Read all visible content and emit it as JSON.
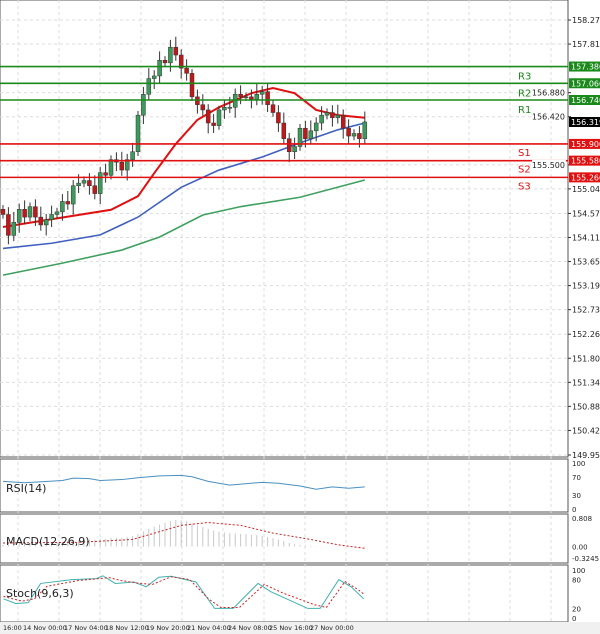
{
  "colors": {
    "resistance": "#1a8a1a",
    "support": "#e01010",
    "ma_fast": "#e01010",
    "ma_mid": "#4060c0",
    "ma_slow": "#40a060",
    "bull": "#3c9a5a",
    "bear": "#c01818",
    "rsi": "#4a90c0",
    "stoch_main": "#40b0b0",
    "stoch_signal": "#d02020",
    "macd_hist": "#c8c8c8",
    "macd_signal": "#d02020",
    "current_price_bg": "#000000"
  },
  "price_axis": {
    "ticks": [
      "158.270",
      "157.810",
      "156.880",
      "156.420",
      "155.500",
      "155.040",
      "154.570",
      "154.110",
      "153.650",
      "153.190",
      "152.730",
      "152.260",
      "151.800",
      "151.340",
      "150.880",
      "150.420",
      "149.950"
    ],
    "range": [
      149.95,
      158.27
    ]
  },
  "current_price": {
    "value": 156.319,
    "label": "156.319"
  },
  "levels": [
    {
      "name": "R3",
      "value": 157.38,
      "label": "157.380",
      "type": "resistance"
    },
    {
      "name": "R2",
      "value": 157.06,
      "label": "157.060",
      "type": "resistance"
    },
    {
      "name": "R1",
      "value": 156.74,
      "label": "156.740",
      "type": "resistance"
    },
    {
      "name": "S1",
      "value": 155.9,
      "label": "155.900",
      "type": "support"
    },
    {
      "name": "S2",
      "value": 155.58,
      "label": "155.580",
      "type": "support"
    },
    {
      "name": "S3",
      "value": 155.26,
      "label": "155.260",
      "type": "support"
    }
  ],
  "candles_close": [
    154.55,
    154.15,
    154.4,
    154.65,
    154.5,
    154.7,
    154.5,
    154.35,
    154.45,
    154.55,
    154.6,
    154.8,
    154.75,
    155.1,
    155.15,
    155.2,
    155.1,
    154.95,
    155.35,
    155.3,
    155.6,
    155.55,
    155.4,
    155.6,
    155.75,
    156.45,
    156.85,
    157.15,
    157.2,
    157.5,
    157.45,
    157.75,
    157.6,
    157.35,
    157.25,
    156.8,
    156.65,
    156.55,
    156.3,
    156.25,
    156.55,
    156.6,
    156.6,
    156.85,
    156.8,
    156.8,
    156.75,
    156.85,
    156.9,
    156.65,
    156.5,
    156.3,
    156.0,
    155.75,
    155.85,
    156.2,
    156.0,
    156.15,
    156.3,
    156.45,
    156.5,
    156.4,
    156.45,
    156.2,
    156.05,
    156.1,
    156.0,
    156.32
  ],
  "moving_averages": [
    {
      "key": "ma_fast",
      "points": [
        [
          0,
          154.31
        ],
        [
          20,
          154.64
        ],
        [
          25,
          154.9
        ],
        [
          28,
          155.34
        ],
        [
          32,
          155.9
        ],
        [
          36,
          156.36
        ],
        [
          40,
          156.6
        ],
        [
          46,
          156.87
        ],
        [
          50,
          156.97
        ],
        [
          54,
          156.87
        ],
        [
          58,
          156.55
        ],
        [
          62,
          156.45
        ],
        [
          67,
          156.4
        ]
      ]
    },
    {
      "key": "ma_mid",
      "points": [
        [
          0,
          153.9
        ],
        [
          9,
          154.0
        ],
        [
          18,
          154.16
        ],
        [
          25,
          154.5
        ],
        [
          33,
          155.07
        ],
        [
          40,
          155.4
        ],
        [
          48,
          155.65
        ],
        [
          55,
          155.92
        ],
        [
          62,
          156.17
        ],
        [
          67,
          156.3
        ]
      ]
    },
    {
      "key": "ma_slow",
      "points": [
        [
          0,
          153.39
        ],
        [
          11,
          153.62
        ],
        [
          22,
          153.87
        ],
        [
          29,
          154.12
        ],
        [
          37,
          154.54
        ],
        [
          44,
          154.7
        ],
        [
          55,
          154.88
        ],
        [
          67,
          155.21
        ]
      ]
    }
  ],
  "rsi": {
    "label": "RSI(14)",
    "ticks": [
      "100",
      "70",
      "30",
      "0"
    ],
    "points": [
      [
        0,
        60
      ],
      [
        4,
        57
      ],
      [
        11,
        62
      ],
      [
        13,
        67
      ],
      [
        16,
        66
      ],
      [
        18,
        62
      ],
      [
        22,
        64
      ],
      [
        25,
        68
      ],
      [
        29,
        72
      ],
      [
        33,
        73
      ],
      [
        35,
        70
      ],
      [
        38,
        60
      ],
      [
        42,
        52
      ],
      [
        48,
        58
      ],
      [
        51,
        56
      ],
      [
        55,
        50
      ],
      [
        58,
        43
      ],
      [
        61,
        48
      ],
      [
        64,
        45
      ],
      [
        67,
        48
      ]
    ]
  },
  "macd": {
    "label": "MACD(12,26,9)",
    "ticks": [
      "0.808",
      "0.00",
      "-0.3245"
    ],
    "range": [
      -0.3245,
      0.808
    ],
    "hist": [
      0.05,
      0.05,
      0.06,
      0.07,
      0.08,
      0.09,
      0.1,
      0.1,
      0.11,
      0.12,
      0.13,
      0.14,
      0.15,
      0.17,
      0.18,
      0.19,
      0.2,
      0.2,
      0.21,
      0.22,
      0.24,
      0.25,
      0.25,
      0.27,
      0.3,
      0.36,
      0.43,
      0.5,
      0.56,
      0.62,
      0.67,
      0.72,
      0.75,
      0.74,
      0.72,
      0.66,
      0.6,
      0.55,
      0.5,
      0.45,
      0.42,
      0.4,
      0.38,
      0.37,
      0.36,
      0.35,
      0.33,
      0.32,
      0.3,
      0.27,
      0.24,
      0.2,
      0.15,
      0.1,
      0.07,
      0.05,
      0.03,
      0.02,
      0.01,
      0.01,
      0.0,
      0.0,
      0.0,
      -0.01,
      -0.02,
      -0.02,
      -0.03,
      -0.02
    ],
    "signal": [
      [
        0,
        0.1
      ],
      [
        14,
        0.12
      ],
      [
        24,
        0.2
      ],
      [
        33,
        0.6
      ],
      [
        38,
        0.68
      ],
      [
        44,
        0.6
      ],
      [
        50,
        0.38
      ],
      [
        57,
        0.2
      ],
      [
        62,
        0.05
      ],
      [
        67,
        -0.05
      ]
    ]
  },
  "stoch": {
    "label": "Stoch(9,6,3)",
    "ticks": [
      "100",
      "80",
      "20",
      "0"
    ],
    "main": [
      [
        0,
        40
      ],
      [
        2,
        30
      ],
      [
        4,
        32
      ],
      [
        6,
        72
      ],
      [
        11,
        80
      ],
      [
        15,
        82
      ],
      [
        16,
        88
      ],
      [
        18,
        72
      ],
      [
        21,
        75
      ],
      [
        23,
        65
      ],
      [
        25,
        85
      ],
      [
        27,
        87
      ],
      [
        31,
        75
      ],
      [
        34,
        20
      ],
      [
        37,
        20
      ],
      [
        41,
        72
      ],
      [
        43,
        55
      ],
      [
        49,
        20
      ],
      [
        51,
        20
      ],
      [
        54,
        80
      ],
      [
        56,
        65
      ],
      [
        58,
        40
      ]
    ],
    "signal": [
      [
        0,
        45
      ],
      [
        3,
        35
      ],
      [
        5,
        40
      ],
      [
        7,
        66
      ],
      [
        12,
        78
      ],
      [
        17,
        84
      ],
      [
        19,
        78
      ],
      [
        22,
        72
      ],
      [
        24,
        70
      ],
      [
        27,
        86
      ],
      [
        30,
        80
      ],
      [
        33,
        40
      ],
      [
        35,
        22
      ],
      [
        38,
        22
      ],
      [
        42,
        70
      ],
      [
        45,
        52
      ],
      [
        50,
        28
      ],
      [
        52,
        22
      ],
      [
        55,
        76
      ],
      [
        57,
        60
      ],
      [
        58,
        50
      ]
    ]
  },
  "time_axis": [
    "16:00",
    "14 Nov 00:00",
    "17 Nov 04:00",
    "18 Nov 12:00",
    "19 Nov 20:00",
    "21 Nov 04:00",
    "24 Nov 08:00",
    "25 Nov 16:00",
    "27 Nov 00:00"
  ]
}
